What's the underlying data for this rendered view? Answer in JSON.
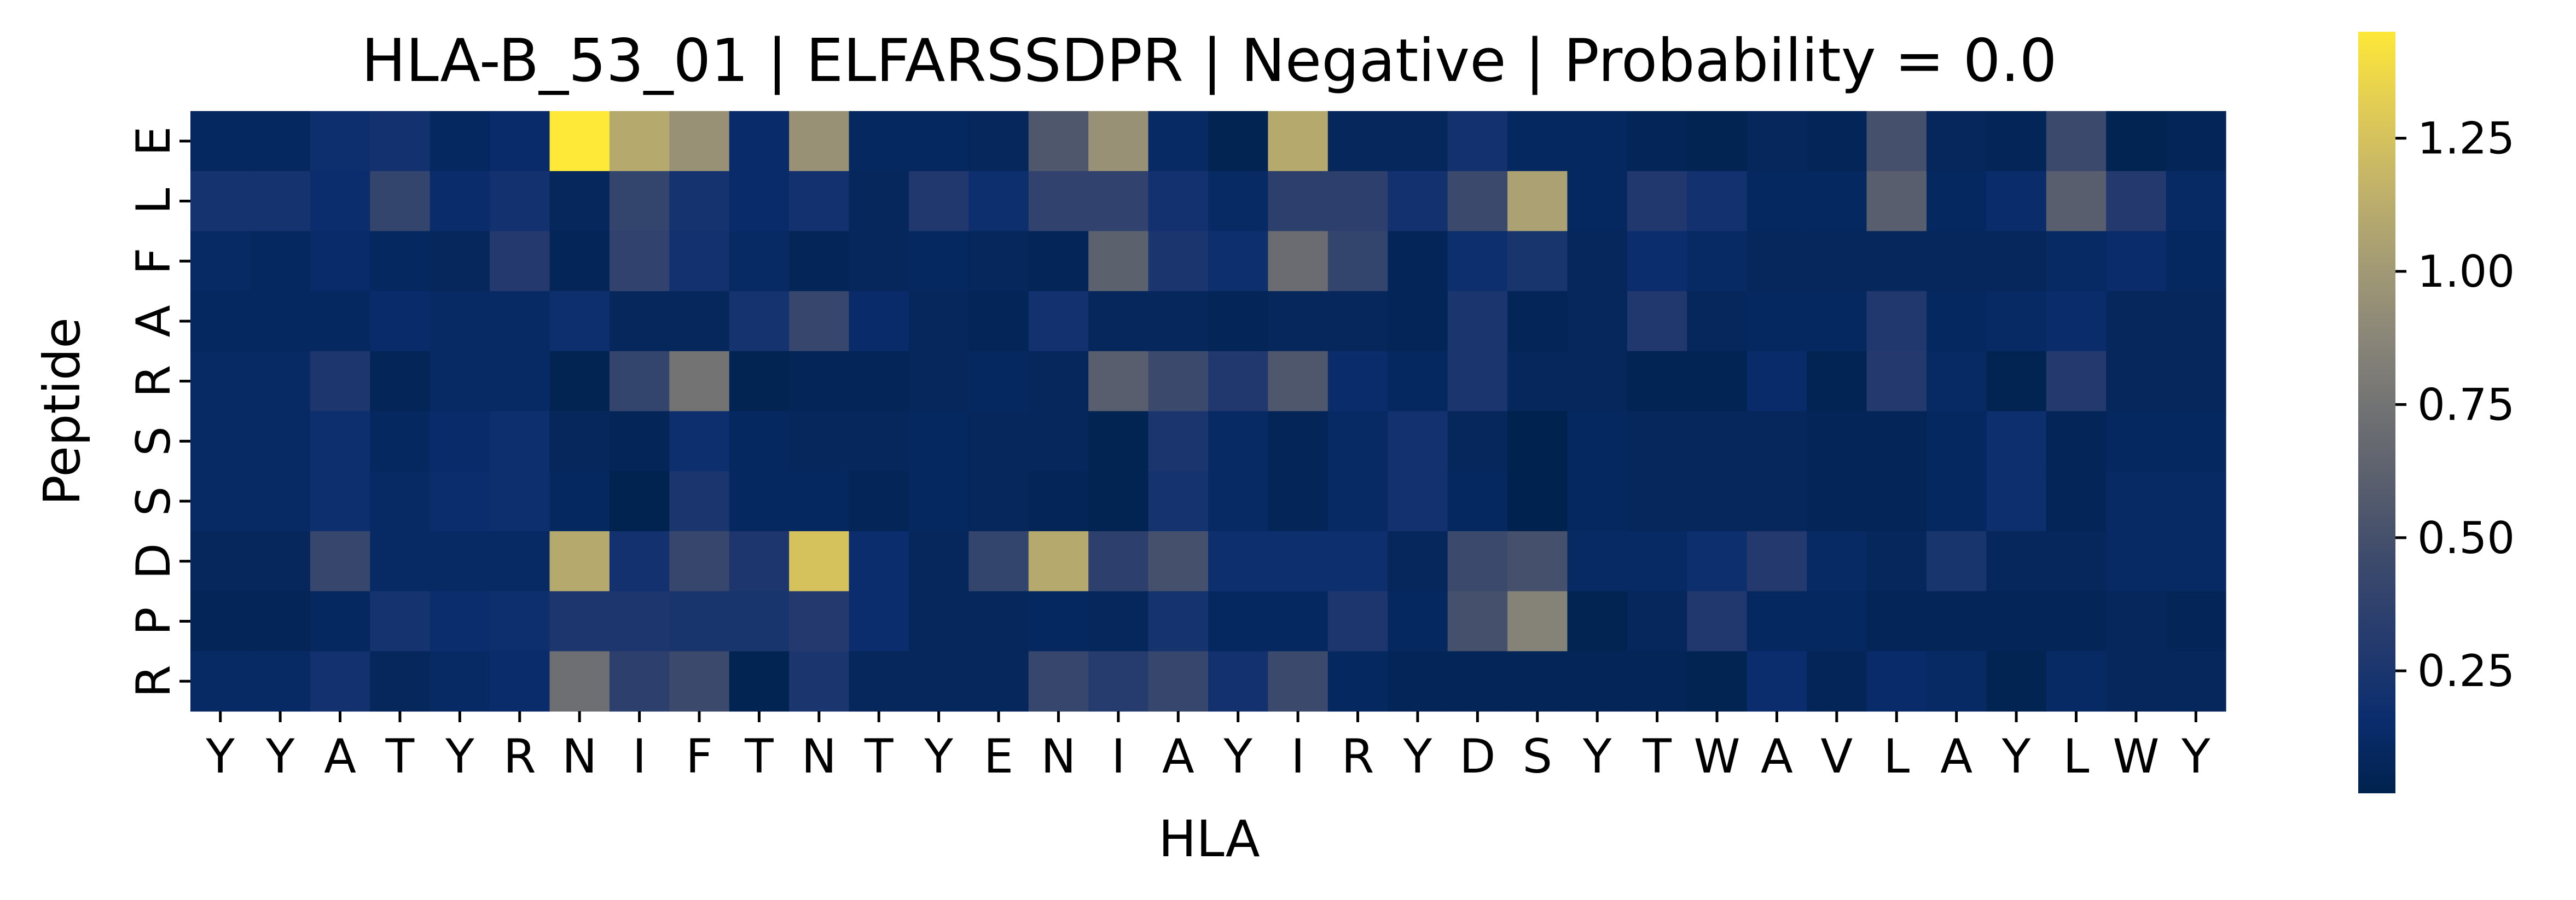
{
  "chart_data": {
    "type": "heatmap",
    "title": "HLA-B_53_01 | ELFARSSDPR | Negative | Probability = 0.0",
    "xlabel": "HLA",
    "ylabel": "Peptide",
    "x_categories": [
      "Y",
      "Y",
      "A",
      "T",
      "Y",
      "R",
      "N",
      "I",
      "F",
      "T",
      "N",
      "T",
      "Y",
      "E",
      "N",
      "I",
      "A",
      "Y",
      "I",
      "R",
      "Y",
      "D",
      "S",
      "Y",
      "T",
      "W",
      "A",
      "V",
      "L",
      "A",
      "Y",
      "L",
      "W",
      "Y"
    ],
    "y_categories": [
      "E",
      "L",
      "F",
      "A",
      "R",
      "S",
      "S",
      "D",
      "P",
      "R"
    ],
    "colormap": "cividis",
    "vmin": 0.02,
    "vmax": 1.45,
    "colorbar_ticks": [
      {
        "value": 0.25,
        "label": "0.25"
      },
      {
        "value": 0.5,
        "label": "0.50"
      },
      {
        "value": 0.75,
        "label": "0.75"
      },
      {
        "value": 1.0,
        "label": "1.00"
      },
      {
        "value": 1.25,
        "label": "1.25"
      }
    ],
    "values": [
      [
        0.1,
        0.1,
        0.18,
        0.2,
        0.1,
        0.14,
        1.45,
        1.1,
        0.95,
        0.14,
        0.95,
        0.1,
        0.1,
        0.08,
        0.55,
        0.95,
        0.12,
        0.04,
        1.1,
        0.08,
        0.08,
        0.2,
        0.1,
        0.1,
        0.06,
        0.04,
        0.08,
        0.06,
        0.5,
        0.08,
        0.06,
        0.45,
        0.04,
        0.06
      ],
      [
        0.22,
        0.22,
        0.16,
        0.4,
        0.15,
        0.2,
        0.08,
        0.4,
        0.22,
        0.14,
        0.2,
        0.08,
        0.28,
        0.18,
        0.38,
        0.38,
        0.2,
        0.12,
        0.35,
        0.35,
        0.2,
        0.45,
        1.05,
        0.1,
        0.28,
        0.2,
        0.1,
        0.1,
        0.6,
        0.1,
        0.15,
        0.6,
        0.3,
        0.12
      ],
      [
        0.12,
        0.1,
        0.14,
        0.1,
        0.08,
        0.3,
        0.06,
        0.38,
        0.2,
        0.12,
        0.06,
        0.08,
        0.1,
        0.08,
        0.06,
        0.62,
        0.25,
        0.18,
        0.7,
        0.4,
        0.06,
        0.18,
        0.24,
        0.08,
        0.16,
        0.12,
        0.08,
        0.08,
        0.08,
        0.08,
        0.08,
        0.12,
        0.15,
        0.1
      ],
      [
        0.1,
        0.1,
        0.1,
        0.14,
        0.12,
        0.12,
        0.18,
        0.08,
        0.08,
        0.22,
        0.42,
        0.14,
        0.08,
        0.06,
        0.2,
        0.08,
        0.08,
        0.06,
        0.08,
        0.08,
        0.06,
        0.25,
        0.06,
        0.08,
        0.28,
        0.08,
        0.1,
        0.1,
        0.28,
        0.1,
        0.12,
        0.15,
        0.08,
        0.08
      ],
      [
        0.12,
        0.12,
        0.26,
        0.06,
        0.12,
        0.12,
        0.04,
        0.4,
        0.75,
        0.04,
        0.06,
        0.06,
        0.08,
        0.1,
        0.08,
        0.6,
        0.45,
        0.28,
        0.55,
        0.15,
        0.1,
        0.25,
        0.08,
        0.08,
        0.05,
        0.05,
        0.14,
        0.05,
        0.3,
        0.12,
        0.04,
        0.3,
        0.08,
        0.08
      ],
      [
        0.12,
        0.12,
        0.18,
        0.1,
        0.14,
        0.18,
        0.08,
        0.06,
        0.18,
        0.1,
        0.08,
        0.08,
        0.1,
        0.08,
        0.08,
        0.04,
        0.25,
        0.12,
        0.06,
        0.12,
        0.2,
        0.08,
        0.02,
        0.1,
        0.08,
        0.08,
        0.08,
        0.06,
        0.06,
        0.1,
        0.18,
        0.06,
        0.1,
        0.1
      ],
      [
        0.12,
        0.12,
        0.18,
        0.12,
        0.16,
        0.18,
        0.1,
        0.03,
        0.25,
        0.1,
        0.1,
        0.06,
        0.1,
        0.08,
        0.06,
        0.04,
        0.22,
        0.12,
        0.06,
        0.12,
        0.2,
        0.1,
        0.02,
        0.1,
        0.08,
        0.08,
        0.08,
        0.06,
        0.06,
        0.1,
        0.18,
        0.06,
        0.12,
        0.12
      ],
      [
        0.08,
        0.08,
        0.42,
        0.12,
        0.12,
        0.12,
        1.1,
        0.2,
        0.42,
        0.26,
        1.25,
        0.16,
        0.08,
        0.4,
        1.1,
        0.36,
        0.5,
        0.18,
        0.18,
        0.18,
        0.08,
        0.45,
        0.5,
        0.12,
        0.12,
        0.18,
        0.3,
        0.12,
        0.08,
        0.24,
        0.08,
        0.08,
        0.12,
        0.12
      ],
      [
        0.06,
        0.06,
        0.1,
        0.22,
        0.16,
        0.18,
        0.26,
        0.26,
        0.24,
        0.24,
        0.3,
        0.16,
        0.08,
        0.08,
        0.1,
        0.08,
        0.22,
        0.1,
        0.1,
        0.26,
        0.1,
        0.5,
        0.85,
        0.04,
        0.08,
        0.28,
        0.1,
        0.1,
        0.06,
        0.06,
        0.06,
        0.06,
        0.08,
        0.06
      ],
      [
        0.12,
        0.12,
        0.2,
        0.08,
        0.12,
        0.15,
        0.72,
        0.36,
        0.45,
        0.04,
        0.25,
        0.08,
        0.08,
        0.08,
        0.42,
        0.32,
        0.42,
        0.2,
        0.45,
        0.1,
        0.06,
        0.06,
        0.06,
        0.06,
        0.06,
        0.04,
        0.16,
        0.06,
        0.14,
        0.12,
        0.04,
        0.12,
        0.08,
        0.08
      ]
    ]
  }
}
